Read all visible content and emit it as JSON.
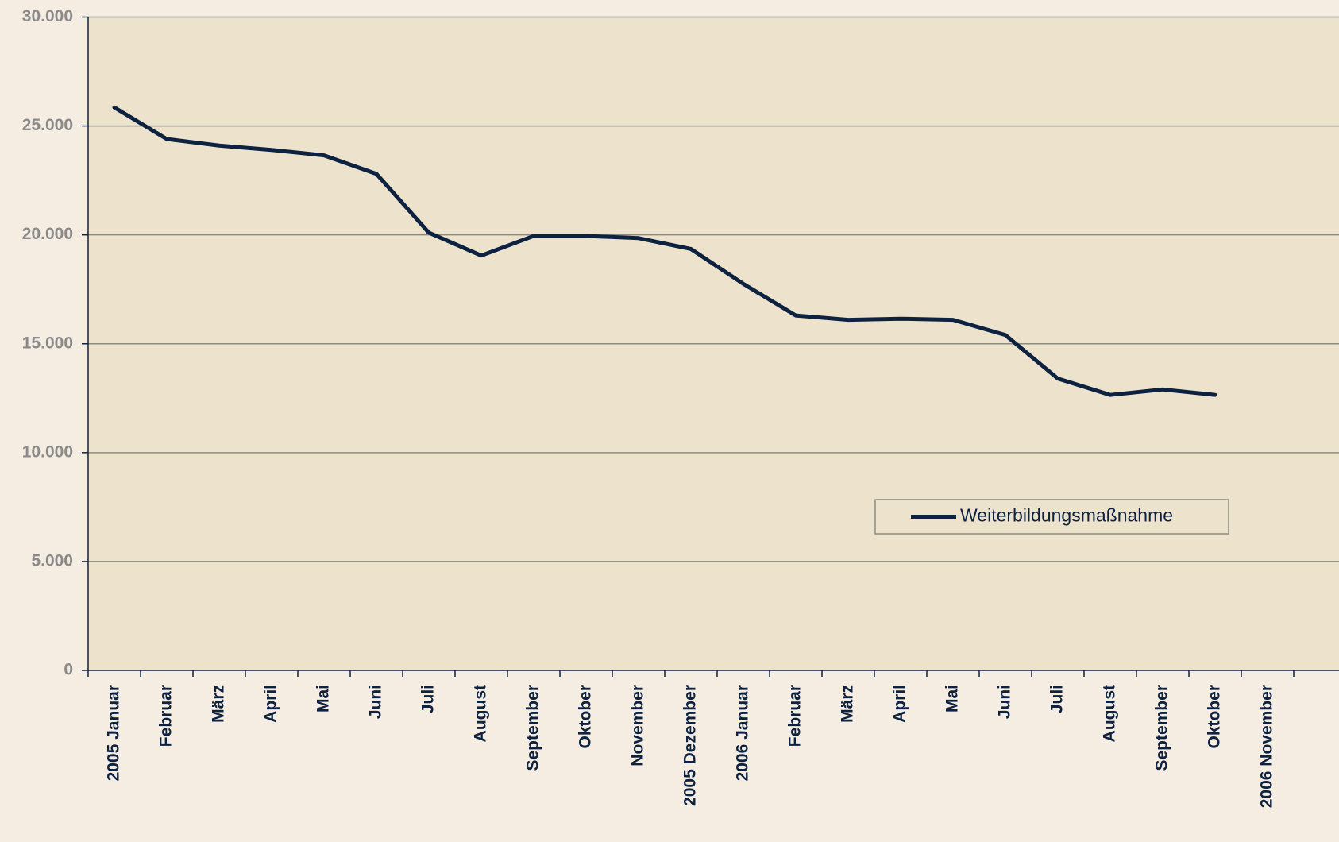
{
  "chart_data": {
    "type": "line",
    "categories": [
      "2005 Januar",
      "Februar",
      "März",
      "April",
      "Mai",
      "Juni",
      "Juli",
      "August",
      "September",
      "Oktober",
      "November",
      "2005 Dezember",
      "2006 Januar",
      "Februar",
      "März",
      "April",
      "Mai",
      "Juni",
      "Juli",
      "August",
      "September",
      "Oktober",
      "2006 November"
    ],
    "series": [
      {
        "name": "Weiterbildungsmaßnahme",
        "color": "#0d2240",
        "values": [
          25850,
          24400,
          24100,
          23900,
          23650,
          22800,
          20100,
          19050,
          19950,
          19950,
          19850,
          19350,
          17750,
          16300,
          16100,
          16150,
          16100,
          15400,
          13400,
          12650,
          12900,
          12650,
          null
        ]
      }
    ],
    "ylim": [
      0,
      30000
    ],
    "yticks": [
      0,
      {
        "value": 5000,
        "label": "5.000"
      },
      {
        "value": 10000,
        "label": "10.000"
      },
      {
        "value": 15000,
        "label": "15.000"
      },
      {
        "value": 20000,
        "label": "20.000"
      },
      {
        "value": 25000,
        "label": "25.000"
      },
      {
        "value": 30000,
        "label": "30.000"
      }
    ],
    "grid": true,
    "legend": "right"
  }
}
